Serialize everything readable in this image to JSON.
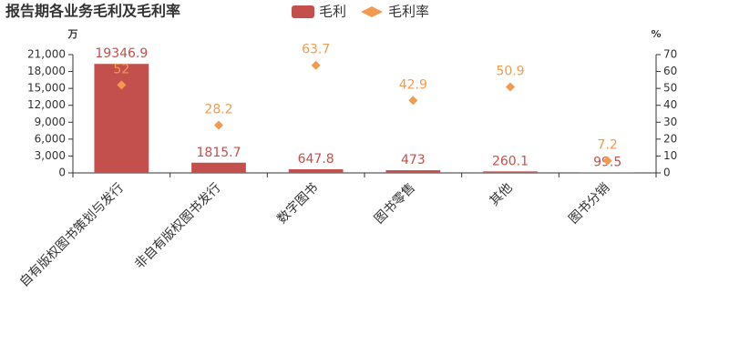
{
  "chart_data": {
    "type": "bar",
    "title": "报告期各业务毛利及毛利率",
    "ylabel": "万",
    "y2label": "%",
    "categories": [
      "自有版权图书策划与发行",
      "非自有版权图书发行",
      "数字图书",
      "图书零售",
      "其他",
      "图书分销"
    ],
    "series": [
      {
        "name": "毛利",
        "color": "#c4504d",
        "values": [
          19346.9,
          1815.7,
          647.8,
          473,
          260.1,
          99.5
        ]
      },
      {
        "name": "毛利率",
        "color": "#f29b50",
        "axis": "y2",
        "marker": "diamond",
        "values": [
          52,
          28.2,
          63.7,
          42.9,
          50.9,
          7.2
        ]
      }
    ],
    "ylim": [
      0,
      21000
    ],
    "yticks": [
      0,
      {
        "value": 3000,
        "label": "3,000"
      },
      {
        "value": 6000,
        "label": "6,000"
      },
      {
        "value": 9000,
        "label": "9,000"
      },
      {
        "value": 12000,
        "label": "12,000"
      },
      {
        "value": 15000,
        "label": "15,000"
      },
      {
        "value": 18000,
        "label": "18,000"
      },
      {
        "value": 21000,
        "label": "21,000"
      }
    ],
    "y2lim": [
      0,
      70
    ],
    "y2ticks": [
      0,
      10,
      20,
      30,
      40,
      50,
      60,
      70
    ],
    "grid": false
  }
}
